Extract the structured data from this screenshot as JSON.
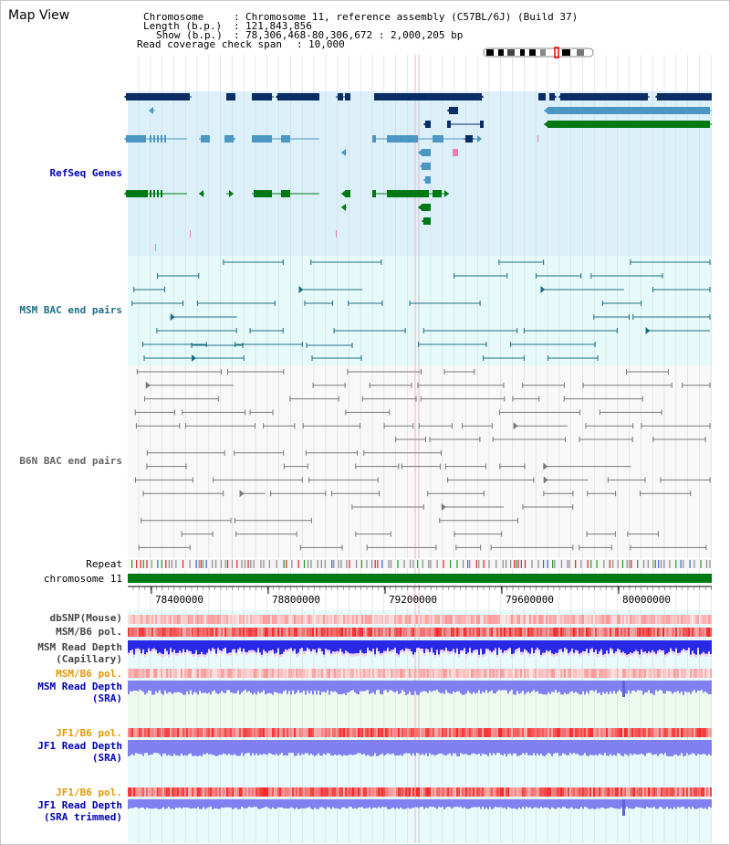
{
  "title": "Map View",
  "info": {
    "chromosome_label": "Chromosome",
    "chromosome_value": "Chromosome 11, reference assembly (C57BL/6J) (Build 37)",
    "length_label": "Length (b.p.)",
    "length_value": "121,843,856",
    "show_label": "Show (b.p.)",
    "show_value": "78,306,468-80,306,672 : 2,000,205 bp",
    "coverage_label": "Read coverage check span",
    "coverage_value": "10,000",
    "sep": ":"
  },
  "tracks": {
    "refseq": "RefSeq Genes",
    "msm_bac": "MSM BAC end pairs",
    "b6n_bac": "B6N BAC end pairs",
    "repeat": "Repeat",
    "chromosome": "chromosome 11",
    "dbsnp": "dbSNP(Mouse)",
    "msm_b6_pol": "MSM/B6 pol.",
    "msm_depth_cap_1": "MSM Read Depth",
    "msm_depth_cap_2": "(Capillary)",
    "msm_b6_pol_sra": "MSM/B6 pol.",
    "msm_depth_sra_1": "MSM Read Depth",
    "msm_depth_sra_2": "(SRA)",
    "jf1_b6_pol": "JF1/B6 pol.",
    "jf1_depth_1": "JF1 Read Depth",
    "jf1_depth_2": "(SRA)",
    "jf1_b6_pol_trim": "JF1/B6 pol.",
    "jf1_depth_trim_1": "JF1 Read Depth",
    "jf1_depth_trim_2": "(SRA trimmed)"
  },
  "axis": {
    "ticks": [
      "78400000",
      "78800000",
      "79200000",
      "79600000",
      "80000000"
    ]
  },
  "colors": {
    "refseq_bg": "#dcf0fa",
    "msm_bg": "#e6fafa",
    "b6n_bg": "#f8f8f8",
    "gene_dark": "#0a2d64",
    "gene_mid": "#4b96c3",
    "gene_green": "#007814",
    "msm_line": "#1e6e82",
    "b6n_line": "#787878",
    "chrom_bar": "#007814",
    "depth_blue": "#2828e6",
    "depth_sra": "#8080f0"
  }
}
